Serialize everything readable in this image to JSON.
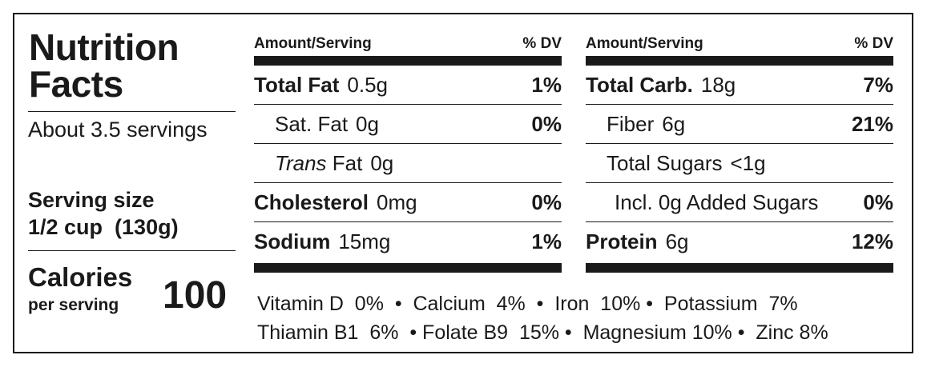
{
  "title": {
    "line1": "Nutrition",
    "line2": "Facts"
  },
  "servings": {
    "per_container": "About 3.5 servings"
  },
  "serving_size": {
    "label": "Serving size",
    "value": "1/2 cup  (130g)"
  },
  "calories": {
    "label": "Calories",
    "sub": "per serving",
    "value": "100"
  },
  "left_column": {
    "header_amount": "Amount/Serving",
    "header_dv": "% DV",
    "rows": [
      {
        "name": "Total Fat",
        "amount": "0.5g",
        "dv": "1%"
      },
      {
        "name": "Sat. Fat",
        "amount": "0g",
        "dv": "0%"
      },
      {
        "name_italic": "Trans",
        "name": " Fat",
        "amount": "0g",
        "dv": ""
      },
      {
        "name": "Cholesterol",
        "amount": "0mg",
        "dv": "0%"
      },
      {
        "name": "Sodium",
        "amount": "15mg",
        "dv": "1%"
      }
    ]
  },
  "right_column": {
    "header_amount": "Amount/Serving",
    "header_dv": "% DV",
    "rows": [
      {
        "name": "Total Carb.",
        "amount": "18g",
        "dv": "7%"
      },
      {
        "name": "Fiber",
        "amount": "6g",
        "dv": "21%"
      },
      {
        "name": "Total Sugars",
        "amount": "<1g",
        "dv": ""
      },
      {
        "name": "Incl. 0g Added Sugars",
        "amount": "",
        "dv": "0%"
      },
      {
        "name": "Protein",
        "amount": "6g",
        "dv": "12%"
      }
    ]
  },
  "vitamins": {
    "line1": "Vitamin D  0%  •  Calcium  4%  •  Iron  10% •  Potassium  7%",
    "line2": "Thiamin B1  6%  • Folate B9  15% •  Magnesium 10% •  Zinc 8%"
  }
}
